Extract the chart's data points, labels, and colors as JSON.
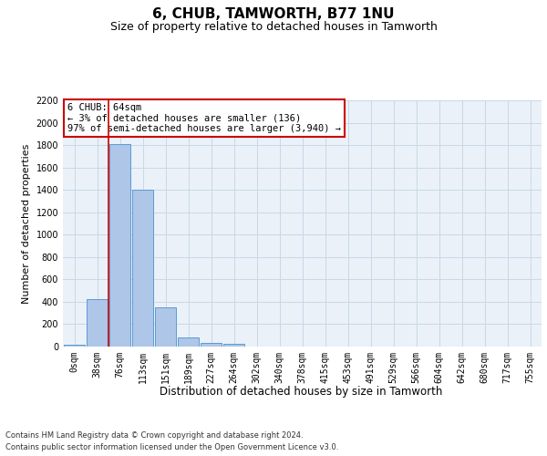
{
  "title": "6, CHUB, TAMWORTH, B77 1NU",
  "subtitle": "Size of property relative to detached houses in Tamworth",
  "xlabel": "Distribution of detached houses by size in Tamworth",
  "ylabel": "Number of detached properties",
  "bar_labels": [
    "0sqm",
    "38sqm",
    "76sqm",
    "113sqm",
    "151sqm",
    "189sqm",
    "227sqm",
    "264sqm",
    "302sqm",
    "340sqm",
    "378sqm",
    "415sqm",
    "453sqm",
    "491sqm",
    "529sqm",
    "566sqm",
    "604sqm",
    "642sqm",
    "680sqm",
    "717sqm",
    "755sqm"
  ],
  "bar_values": [
    20,
    420,
    1810,
    1400,
    350,
    80,
    30,
    25,
    0,
    0,
    0,
    0,
    0,
    0,
    0,
    0,
    0,
    0,
    0,
    0,
    0
  ],
  "bar_color": "#aec6e8",
  "bar_edge_color": "#5b9bd5",
  "grid_color": "#c8d8e8",
  "background_color": "#eaf1f8",
  "ylim": [
    0,
    2200
  ],
  "yticks": [
    0,
    200,
    400,
    600,
    800,
    1000,
    1200,
    1400,
    1600,
    1800,
    2000,
    2200
  ],
  "vline_x_index": 2,
  "vline_color": "#cc0000",
  "annotation_text": "6 CHUB: 64sqm\n← 3% of detached houses are smaller (136)\n97% of semi-detached houses are larger (3,940) →",
  "annotation_box_color": "#ffffff",
  "annotation_box_edge": "#cc0000",
  "footer_line1": "Contains HM Land Registry data © Crown copyright and database right 2024.",
  "footer_line2": "Contains public sector information licensed under the Open Government Licence v3.0.",
  "title_fontsize": 11,
  "subtitle_fontsize": 9,
  "tick_fontsize": 7,
  "ylabel_fontsize": 8,
  "xlabel_fontsize": 8.5
}
